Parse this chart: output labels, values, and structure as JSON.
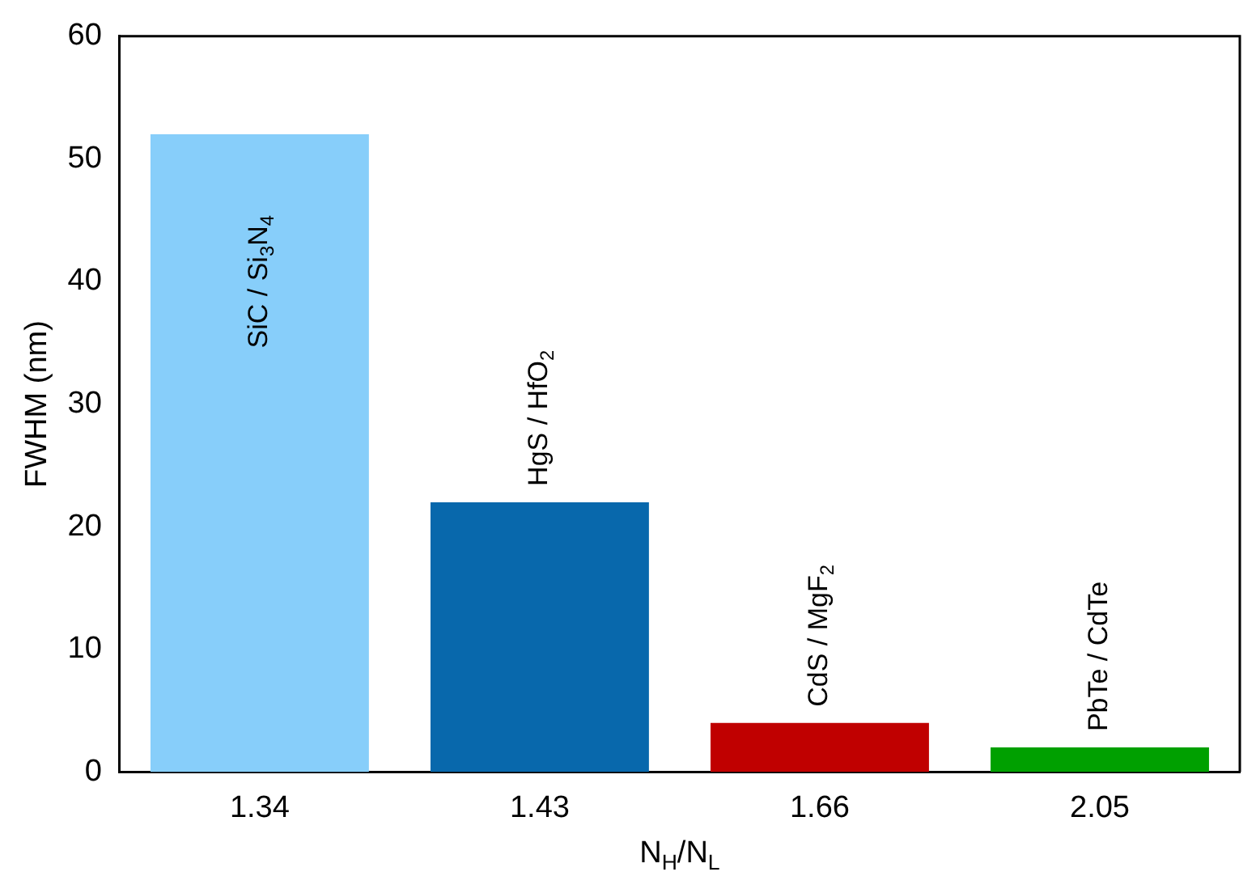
{
  "chart_data": {
    "type": "bar",
    "xlabel": "N$_{H}$/N$_{L}$",
    "ylabel": "FWHM (nm)",
    "categories": [
      "1.34",
      "1.43",
      "1.66",
      "2.05"
    ],
    "values": [
      52,
      22,
      4,
      2
    ],
    "colors": [
      "#87cefa",
      "#0868ac",
      "#c00000",
      "#00a000"
    ],
    "ylim": [
      0,
      60
    ],
    "yticks": [
      0,
      10,
      20,
      30,
      40,
      50,
      60
    ],
    "grid": false,
    "legend": false,
    "annotations": [
      {
        "text": "SiC / Si$_{3}$N$_{4}$",
        "x": "1.34",
        "y": 52
      },
      {
        "text": "HgS / HfO$_{2}$",
        "x": "1.43",
        "y": 22
      },
      {
        "text": "CdS / MgF$_{2}$",
        "x": "1.66",
        "y": 4
      },
      {
        "text": "PbTe / CdTe",
        "x": "2.05",
        "y": 2
      }
    ]
  }
}
